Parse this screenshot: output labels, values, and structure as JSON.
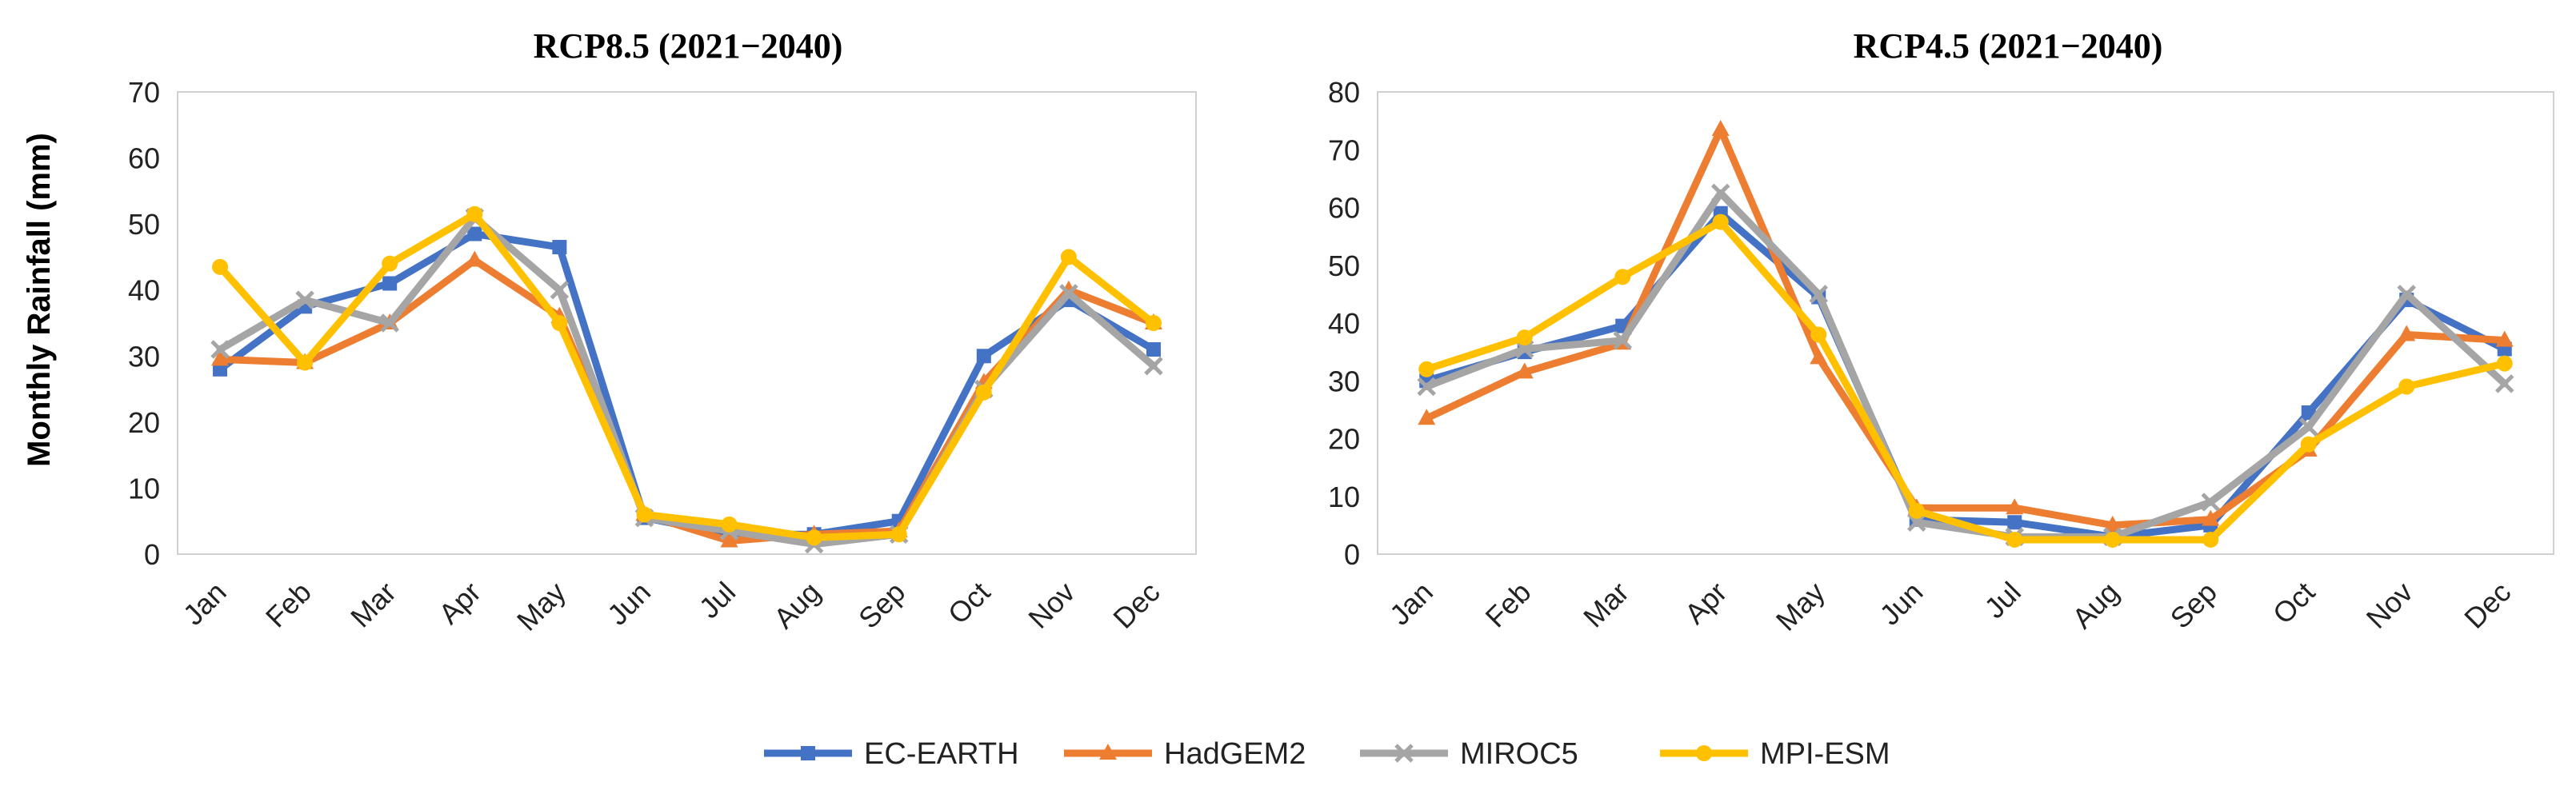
{
  "figure": {
    "ylabel": "Monthly Rainfall (mm)"
  },
  "legend": [
    {
      "name": "EC-EARTH",
      "color": "#4472C4",
      "marker": "square"
    },
    {
      "name": "HadGEM2",
      "color": "#ED7D31",
      "marker": "triangle"
    },
    {
      "name": "MIROC5",
      "color": "#A5A5A5",
      "marker": "x"
    },
    {
      "name": "MPI-ESM",
      "color": "#FFC000",
      "marker": "circle"
    }
  ],
  "chart_data": [
    {
      "type": "line",
      "title": "RCP8.5 (2021−2040)",
      "categories": [
        "Jan",
        "Feb",
        "Mar",
        "Apr",
        "May",
        "Jun",
        "Jul",
        "Aug",
        "Sep",
        "Oct",
        "Nov",
        "Dec"
      ],
      "ylim": [
        0,
        70
      ],
      "yticks": [
        0,
        10,
        20,
        30,
        40,
        50,
        60,
        70
      ],
      "ylabel": "Monthly Rainfall (mm)",
      "series": [
        {
          "name": "EC-EARTH",
          "values": [
            28,
            37.5,
            41,
            48.5,
            46.5,
            5.5,
            3,
            3,
            5,
            30,
            38.5,
            31
          ]
        },
        {
          "name": "HadGEM2",
          "values": [
            29.5,
            29,
            35,
            44.5,
            36,
            6,
            2,
            3,
            3.5,
            26,
            40,
            35
          ]
        },
        {
          "name": "MIROC5",
          "values": [
            31,
            38.5,
            35,
            51,
            40,
            5.5,
            3.5,
            1.5,
            3,
            25,
            39.5,
            28.5
          ]
        },
        {
          "name": "MPI-ESM",
          "values": [
            43.5,
            29,
            44,
            51.5,
            35,
            6,
            4.5,
            2.5,
            3,
            24.5,
            45,
            35
          ]
        }
      ]
    },
    {
      "type": "line",
      "title": "RCP4.5 (2021−2040)",
      "categories": [
        "Jan",
        "Feb",
        "Mar",
        "Apr",
        "May",
        "Jun",
        "Jul",
        "Aug",
        "Sep",
        "Oct",
        "Nov",
        "Dec"
      ],
      "ylim": [
        0,
        80
      ],
      "yticks": [
        0,
        10,
        20,
        30,
        40,
        50,
        60,
        70,
        80
      ],
      "ylabel": "",
      "series": [
        {
          "name": "EC-EARTH",
          "values": [
            30,
            35,
            39.5,
            59,
            44.5,
            6,
            5.5,
            3,
            5,
            24.5,
            44,
            35.5
          ]
        },
        {
          "name": "HadGEM2",
          "values": [
            23.5,
            31.5,
            36.5,
            73.5,
            34,
            8,
            8,
            5,
            6,
            18,
            38,
            37
          ]
        },
        {
          "name": "MIROC5",
          "values": [
            29,
            35.5,
            37,
            62.5,
            45,
            5.5,
            3,
            3,
            9,
            22,
            45,
            29.5
          ]
        },
        {
          "name": "MPI-ESM",
          "values": [
            32,
            37.5,
            48,
            57.5,
            38,
            7.5,
            2.5,
            2.5,
            2.5,
            19,
            29,
            33
          ]
        }
      ]
    }
  ]
}
